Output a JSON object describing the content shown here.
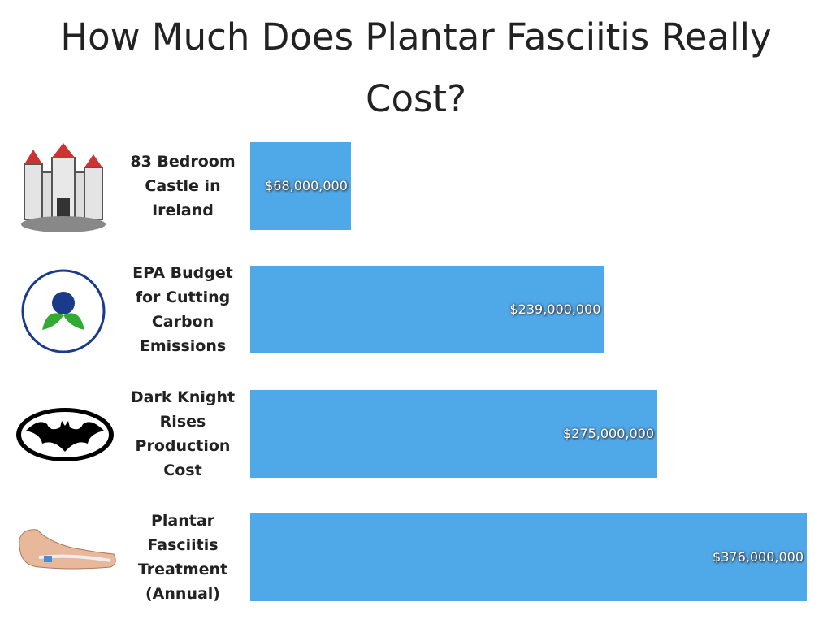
{
  "chart_data": {
    "type": "bar",
    "orientation": "horizontal",
    "title": "How Much Does Plantar Fasciitis Really Cost?",
    "categories": [
      "83 Bedroom Castle in Ireland",
      "EPA Budget for Cutting Carbon Emissions",
      "Dark Knight Rises Production Cost",
      "Plantar Fasciitis Treatment (Annual)"
    ],
    "values": [
      68000000,
      239000000,
      275000000,
      376000000
    ],
    "value_labels": [
      "$68,000,000",
      "$239,000,000",
      "$275,000,000",
      "$376,000,000"
    ],
    "color": "#4fa8e8"
  }
}
